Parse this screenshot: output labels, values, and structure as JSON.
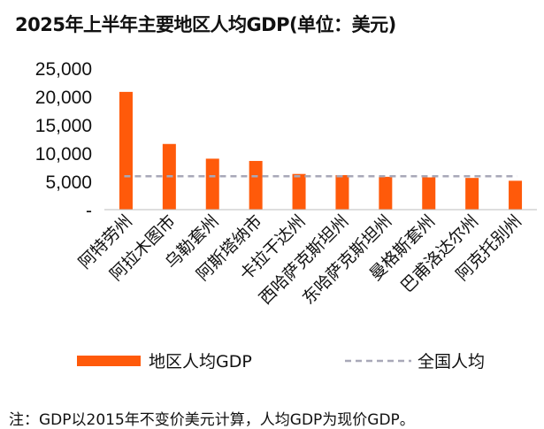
{
  "title": "2025年上半年主要地区人均GDP(单位：美元)",
  "note": "注：GDP以2015年不变价美元计算，人均GDP为现价GDP。",
  "colors": {
    "bar": "#ff5a0a",
    "reference": "#a8a8b8",
    "axis": "#bdbdbd"
  },
  "chart_data": {
    "type": "bar",
    "categories": [
      "阿特劳州",
      "阿拉木图市",
      "乌勒套州",
      "阿斯塔纳市",
      "卡拉干达州",
      "西哈萨克斯坦州",
      "东哈萨克斯坦州",
      "曼格斯套州",
      "巴甫洛达尔州",
      "阿克托别州"
    ],
    "series": [
      {
        "name": "地区人均GDP",
        "values": [
          20800,
          11600,
          9000,
          8600,
          6300,
          6100,
          5800,
          5700,
          5600,
          5100
        ]
      }
    ],
    "reference_line": {
      "name": "全国人均",
      "value": 5900
    },
    "y_ticks": [
      0,
      5000,
      10000,
      15000,
      20000,
      25000
    ],
    "y_tick_labels": [
      "-",
      "5,000",
      "10,000",
      "15,000",
      "20,000",
      "25,000"
    ],
    "ylim": [
      0,
      25000
    ],
    "legend": "bottom",
    "grid": false
  }
}
